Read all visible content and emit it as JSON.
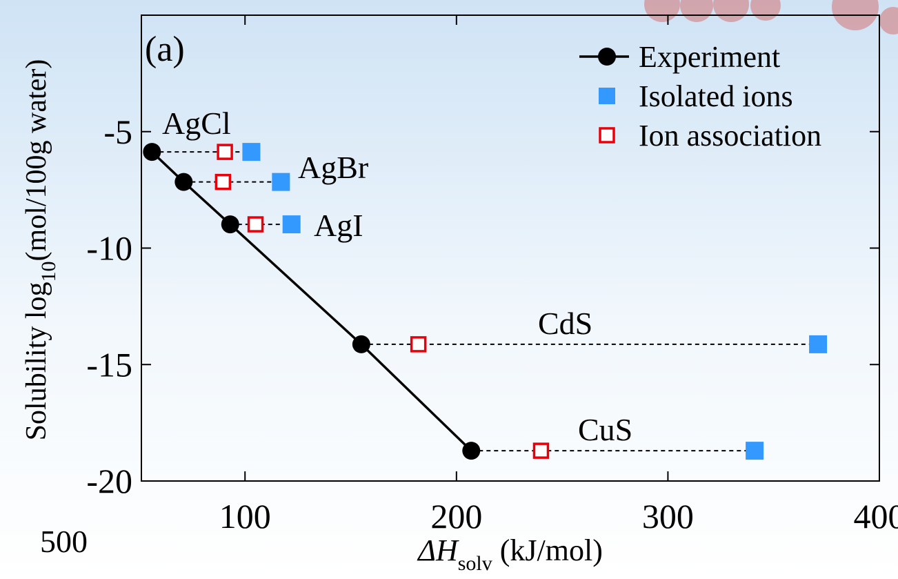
{
  "chart_data": {
    "type": "scatter",
    "xlabel": {
      "main": "ΔH",
      "sub": "solv",
      "post": " (kJ/mol)"
    },
    "ylabel": {
      "pre": "Solubility log",
      "sub": "10",
      "post": "(mol/100g water)"
    },
    "xlim": [
      51,
      400
    ],
    "ylim": [
      -20,
      0
    ],
    "xticks": [
      100,
      200,
      300,
      400
    ],
    "yticks": [
      -20,
      -15,
      -10,
      -5
    ],
    "legend": "upper right",
    "series": [
      {
        "name": "Experiment",
        "color": "#000000",
        "marker": "circle",
        "line": true,
        "x": [
          56,
          71,
          93,
          155,
          207
        ],
        "values": [
          -5.87,
          -7.16,
          -8.98,
          -14.13,
          -18.7
        ]
      },
      {
        "name": "Isolated ions",
        "color": "#3399ff",
        "marker": "square-filled",
        "x": [
          103,
          117,
          122,
          371,
          341
        ],
        "values": [
          -5.87,
          -7.16,
          -8.98,
          -14.13,
          -18.7
        ]
      },
      {
        "name": "Ion association",
        "color": "#e8000b",
        "marker": "square-open",
        "x": [
          90.5,
          89.6,
          105,
          182,
          240
        ],
        "values": [
          -5.87,
          -7.16,
          -8.98,
          -14.13,
          -18.7
        ]
      }
    ],
    "annotations": [
      "(a)",
      "AgCl",
      "AgBr",
      "AgI",
      "CdS",
      "CuS"
    ],
    "stray_label": "500"
  }
}
